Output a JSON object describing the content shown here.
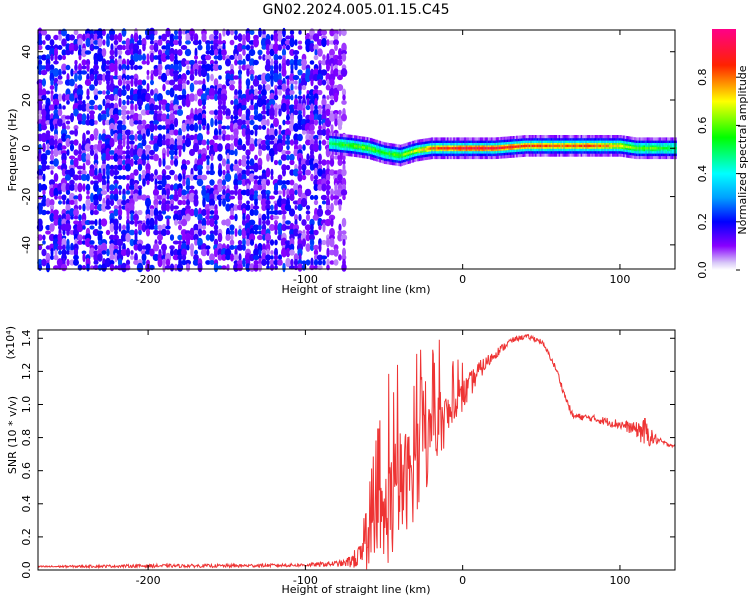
{
  "title": "GN02.2024.005.01.15.C45",
  "chart_data": [
    {
      "type": "heatmap",
      "xlabel": "Height of straight line (km)",
      "ylabel": "Frequency (Hz)",
      "xlim": [
        -270,
        135
      ],
      "ylim": [
        -50,
        49
      ],
      "x_ticks": [
        -200,
        -100,
        0,
        100
      ],
      "y_ticks": [
        -40,
        -20,
        0,
        20,
        40
      ],
      "colorbar": {
        "label": "Normalized spectral amplitude",
        "range": [
          0.0,
          1.0
        ],
        "ticks": [
          0.0,
          0.2,
          0.4,
          0.6,
          0.8
        ]
      },
      "noise_region": {
        "x_range": [
          -270,
          -75
        ],
        "amplitude_range": [
          0.05,
          0.25
        ]
      },
      "signal_ridge": {
        "x": [
          -85,
          -70,
          -60,
          -50,
          -40,
          -30,
          -20,
          0,
          20,
          40,
          60,
          80,
          100,
          110,
          120,
          135
        ],
        "frequency": [
          2,
          1,
          0,
          -2,
          -3,
          -1,
          0,
          0,
          0,
          1,
          1,
          1,
          1,
          0,
          0,
          0
        ],
        "peak_amplitude": [
          0.5,
          0.6,
          0.6,
          0.55,
          0.6,
          0.7,
          0.8,
          0.9,
          0.9,
          0.85,
          0.8,
          0.85,
          0.7,
          0.6,
          0.6,
          0.5
        ]
      }
    },
    {
      "type": "line",
      "xlabel": "Height of straight line (km)",
      "ylabel": "SNR (10 * v/v)",
      "yscale_label": "(x10⁴)",
      "xlim": [
        -270,
        135
      ],
      "ylim": [
        0,
        1.45
      ],
      "x_ticks": [
        -200,
        -100,
        0,
        100
      ],
      "y_ticks": [
        0.0,
        0.2,
        0.4,
        0.6,
        0.8,
        1.0,
        1.2,
        1.4
      ],
      "series": [
        {
          "color": "#ee3333",
          "x": [
            -270,
            -200,
            -150,
            -100,
            -75,
            -65,
            -60,
            -55,
            -50,
            -45,
            -40,
            -35,
            -30,
            -25,
            -20,
            -15,
            -10,
            -5,
            0,
            5,
            10,
            20,
            30,
            35,
            40,
            45,
            50,
            55,
            60,
            65,
            70,
            80,
            90,
            100,
            110,
            115,
            120,
            125,
            130,
            135
          ],
          "y": [
            0.02,
            0.025,
            0.025,
            0.03,
            0.04,
            0.08,
            0.12,
            0.2,
            0.3,
            0.4,
            0.5,
            0.55,
            0.65,
            0.72,
            0.8,
            0.88,
            0.92,
            0.98,
            1.05,
            1.12,
            1.2,
            1.3,
            1.38,
            1.4,
            1.41,
            1.4,
            1.38,
            1.3,
            1.2,
            1.05,
            0.93,
            0.92,
            0.9,
            0.88,
            0.85,
            0.84,
            0.8,
            0.78,
            0.76,
            0.75
          ],
          "noise_amplitude": [
            0.005,
            0.01,
            0.01,
            0.01,
            0.02,
            0.08,
            0.15,
            0.25,
            0.3,
            0.35,
            0.35,
            0.3,
            0.35,
            0.3,
            0.25,
            0.2,
            0.15,
            0.12,
            0.1,
            0.08,
            0.06,
            0.03,
            0.02,
            0.015,
            0.015,
            0.015,
            0.015,
            0.015,
            0.02,
            0.02,
            0.02,
            0.02,
            0.025,
            0.03,
            0.04,
            0.1,
            0.05,
            0.02,
            0.01,
            0.01
          ]
        }
      ]
    }
  ]
}
